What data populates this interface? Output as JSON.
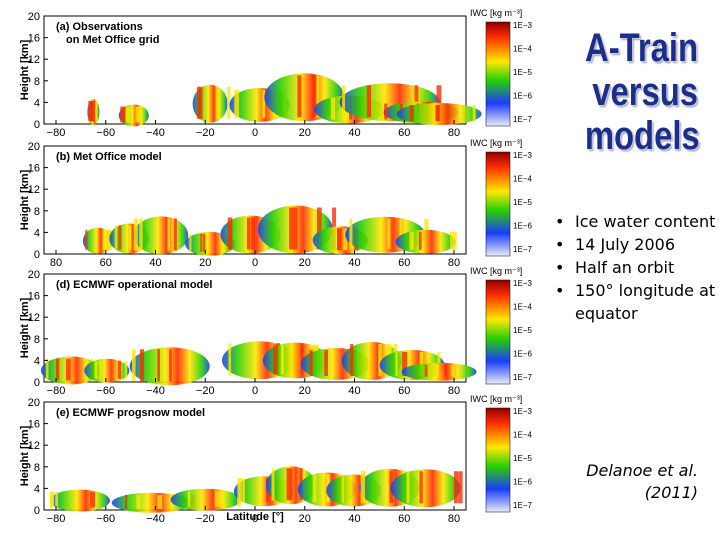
{
  "slide": {
    "title_lines": [
      "A-Train",
      "versus",
      "models"
    ],
    "bullets": [
      "Ice water content",
      "14 July 2006",
      "Half an orbit",
      "150° longitude at equator"
    ],
    "citation_lines": [
      "Delanoe et al.",
      "(2011)"
    ]
  },
  "figure": {
    "y_axis_label": "Height [km]",
    "x_axis_label": "Latitude [°]",
    "y_ticks": [
      "20",
      "16",
      "12",
      "8",
      "4",
      "0"
    ],
    "colorbar_unit": "IWC [kg m⁻³]",
    "colorbar_ticks": [
      "1E−3",
      "1E−4",
      "1E−5",
      "1E−6",
      "1E−7"
    ],
    "colors": {
      "bar_top": "#8b0000",
      "bar_red": "#ff2a00",
      "bar_yellow": "#ffe800",
      "bar_green": "#28d000",
      "bar_blue": "#1b3cff",
      "bar_bottom": "#e8ecff",
      "title_color": "#1b2f8a"
    },
    "panels": [
      {
        "label": "(a) Observations",
        "label2": "on Met Office grid",
        "x_ticks": [
          "−80",
          "−60",
          "−40",
          "−20",
          "0",
          "20",
          "40",
          "60",
          "80"
        ]
      },
      {
        "label": "(b) Met Office model",
        "label2": "",
        "x_ticks": [
          "80",
          "60",
          "40",
          "20",
          "0",
          "20",
          "40",
          "60",
          "80"
        ]
      },
      {
        "label": "(d) ECMWF operational model",
        "label2": "",
        "x_ticks": [
          "−80",
          "−60",
          "−40",
          "−20",
          "0",
          "20",
          "40",
          "60",
          "80"
        ]
      },
      {
        "label": "(e) ECMWF progsnow model",
        "label2": "",
        "x_ticks": [
          "−80",
          "−60",
          "−40",
          "−20",
          "0",
          "20",
          "40",
          "60",
          "80"
        ]
      }
    ]
  }
}
